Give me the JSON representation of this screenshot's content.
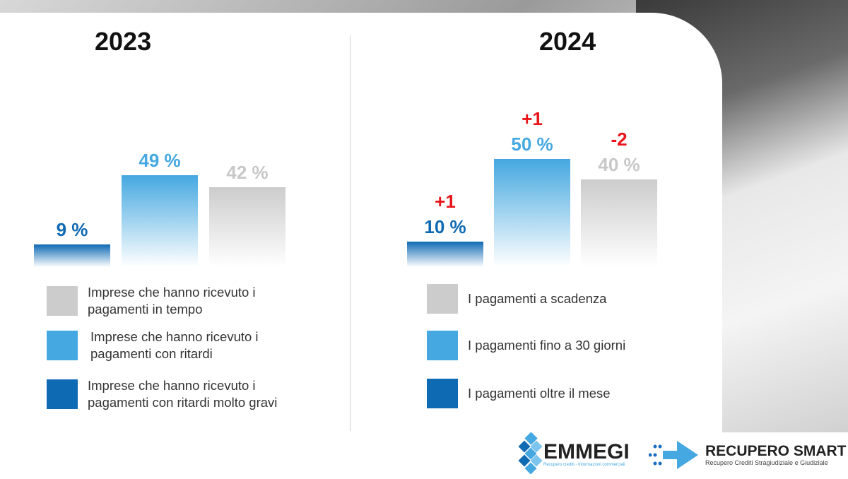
{
  "colors": {
    "dark_blue": "#0f6ab4",
    "light_blue": "#45a8e0",
    "grey": "#cccccc",
    "delta": "#e8161b"
  },
  "chart_data": [
    {
      "type": "bar",
      "title": "2023",
      "categories": [
        "Imprese che hanno ricevuto i pagamenti con ritardi molto gravi",
        "Imprese che hanno ricevuto i pagamenti con ritardi",
        "Imprese che hanno ricevuto i pagamenti in tempo"
      ],
      "values": [
        9,
        49,
        42
      ],
      "labels": [
        "9 %",
        "49 %",
        "42 %"
      ],
      "deltas": [
        "",
        "",
        ""
      ],
      "legend": [
        "Imprese che hanno ricevuto i pagamenti in tempo",
        "Imprese che hanno ricevuto i pagamenti con ritardi",
        "Imprese che hanno ricevuto i pagamenti con ritardi molto gravi"
      ]
    },
    {
      "type": "bar",
      "title": "2024",
      "categories": [
        "I pagamenti oltre il mese",
        "I pagamenti fino a 30 giorni",
        "I pagamenti a scadenza"
      ],
      "values": [
        10,
        50,
        40
      ],
      "labels": [
        "10 %",
        "50 %",
        "40 %"
      ],
      "deltas": [
        "+1",
        "+1",
        "-2"
      ],
      "legend": [
        "I pagamenti a scadenza",
        "I pagamenti fino a 30 giorni",
        "I pagamenti oltre il mese"
      ]
    }
  ],
  "logos": {
    "emmegi": "EMMEGI",
    "emmegi_tagline": "Recupero crediti - Informazioni commerciali",
    "recupero": "RECUPERO SMART",
    "recupero_tagline": "Recupero Crediti Stragiudiziale e Giudiziale"
  }
}
